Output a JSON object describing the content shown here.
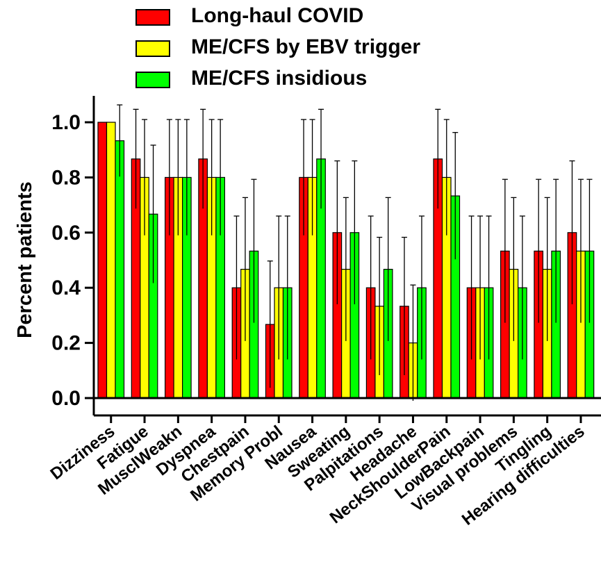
{
  "chart_data": {
    "type": "bar",
    "ylabel": "Percent patients",
    "xlabel": "",
    "ylim": [
      0,
      1.0
    ],
    "yticks": [
      "0.0",
      "0.2",
      "0.4",
      "0.6",
      "0.8",
      "1.0"
    ],
    "categories": [
      "Dizziness",
      "Fatigue",
      "MusclWeakn",
      "Dyspnea",
      "Chestpain",
      "Memory Probl",
      "Nausea",
      "Sweating",
      "Palpitations",
      "Headache",
      "NeckShoulderPain",
      "LowBackpain",
      "Visual problems",
      "Tingling",
      "Hearing difficulties"
    ],
    "series": [
      {
        "name": "Long-haul COVID",
        "color": "#ff0000",
        "values": [
          1.0,
          0.867,
          0.8,
          0.867,
          0.4,
          0.267,
          0.8,
          0.6,
          0.4,
          0.333,
          0.867,
          0.4,
          0.533,
          0.533,
          0.6
        ],
        "err": [
          0.0,
          0.18,
          0.21,
          0.18,
          0.26,
          0.23,
          0.21,
          0.26,
          0.26,
          0.25,
          0.18,
          0.26,
          0.26,
          0.26,
          0.26
        ]
      },
      {
        "name": "ME/CFS by EBV trigger",
        "color": "#ffff00",
        "values": [
          1.0,
          0.8,
          0.8,
          0.8,
          0.467,
          0.4,
          0.8,
          0.467,
          0.333,
          0.2,
          0.8,
          0.4,
          0.467,
          0.467,
          0.533
        ],
        "err": [
          0.0,
          0.21,
          0.21,
          0.21,
          0.26,
          0.26,
          0.21,
          0.26,
          0.25,
          0.21,
          0.21,
          0.26,
          0.26,
          0.26,
          0.26
        ]
      },
      {
        "name": "ME/CFS insidious",
        "color": "#00ff00",
        "values": [
          0.933,
          0.667,
          0.8,
          0.8,
          0.533,
          0.4,
          0.867,
          0.6,
          0.467,
          0.4,
          0.733,
          0.4,
          0.4,
          0.533,
          0.533
        ],
        "err": [
          0.13,
          0.25,
          0.21,
          0.21,
          0.26,
          0.26,
          0.18,
          0.26,
          0.26,
          0.26,
          0.23,
          0.26,
          0.26,
          0.26,
          0.26
        ]
      }
    ]
  }
}
